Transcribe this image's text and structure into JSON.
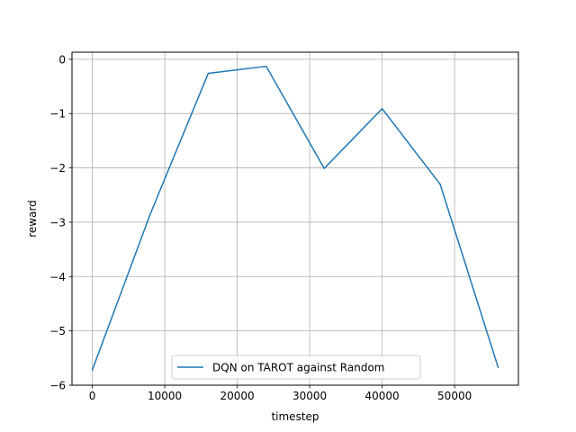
{
  "chart_data": {
    "type": "line",
    "title": "",
    "xlabel": "timestep",
    "ylabel": "reward",
    "xlim": [
      -2800,
      58800
    ],
    "ylim": [
      -6,
      0.13
    ],
    "xticks": [
      0,
      10000,
      20000,
      30000,
      40000,
      50000
    ],
    "yticks": [
      0,
      -1,
      -2,
      -3,
      -4,
      -5,
      -6
    ],
    "grid": true,
    "legend_position": "lower-center",
    "series": [
      {
        "name": "DQN on TAROT against Random",
        "color": "#1f77b4",
        "x": [
          0,
          8000,
          16000,
          24000,
          32000,
          40000,
          48000,
          56000
        ],
        "y": [
          -5.72,
          -2.85,
          -0.26,
          -0.13,
          -2.01,
          -0.91,
          -2.3,
          -5.67
        ]
      }
    ]
  }
}
